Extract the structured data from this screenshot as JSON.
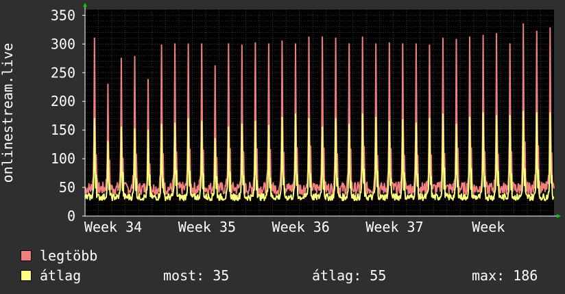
{
  "colors": {
    "background": "#2f2f2f",
    "plot_background": "#000000",
    "grid_minor": "#3a3a3a",
    "grid_major": "#5a2020",
    "max_series": "#f08080",
    "avg_series": "#ffff80",
    "arrow": "#00cc00"
  },
  "chart_data": {
    "type": "area",
    "ylabel": "onlinestream.live",
    "ylim": [
      0,
      360
    ],
    "yticks": [
      0,
      50,
      100,
      150,
      200,
      250,
      300,
      350
    ],
    "xlim": [
      0,
      35
    ],
    "xticks": [
      {
        "pos": 2,
        "label": "Week 34"
      },
      {
        "pos": 9,
        "label": "Week 35"
      },
      {
        "pos": 16,
        "label": "Week 36"
      },
      {
        "pos": 23,
        "label": "Week 37"
      },
      {
        "pos": 30,
        "label": "Week"
      }
    ],
    "grid": true,
    "legend_position": "bottom-left",
    "daily_peaks": {
      "legtobb": [
        310,
        230,
        275,
        278,
        238,
        298,
        300,
        300,
        300,
        262,
        300,
        298,
        302,
        300,
        305,
        300,
        312,
        312,
        310,
        300,
        312,
        300,
        302,
        300,
        300,
        298,
        310,
        308,
        312,
        315,
        318,
        300,
        335,
        322,
        328
      ],
      "atlag": [
        170,
        130,
        155,
        152,
        150,
        160,
        162,
        170,
        165,
        135,
        155,
        160,
        165,
        158,
        172,
        178,
        170,
        155,
        170,
        160,
        178,
        172,
        165,
        168,
        162,
        170,
        178,
        160,
        172,
        180,
        175,
        175,
        182,
        180,
        180
      ]
    },
    "series": [
      {
        "name": "legtöbb",
        "color": "#f08080"
      },
      {
        "name": "átlag",
        "color": "#ffff80"
      }
    ]
  },
  "legend": {
    "max_label": "legtöbb",
    "avg_label": "átlag"
  },
  "stats": {
    "current": "most: 35",
    "average": "átlag: 55",
    "maximum": "max: 186"
  }
}
